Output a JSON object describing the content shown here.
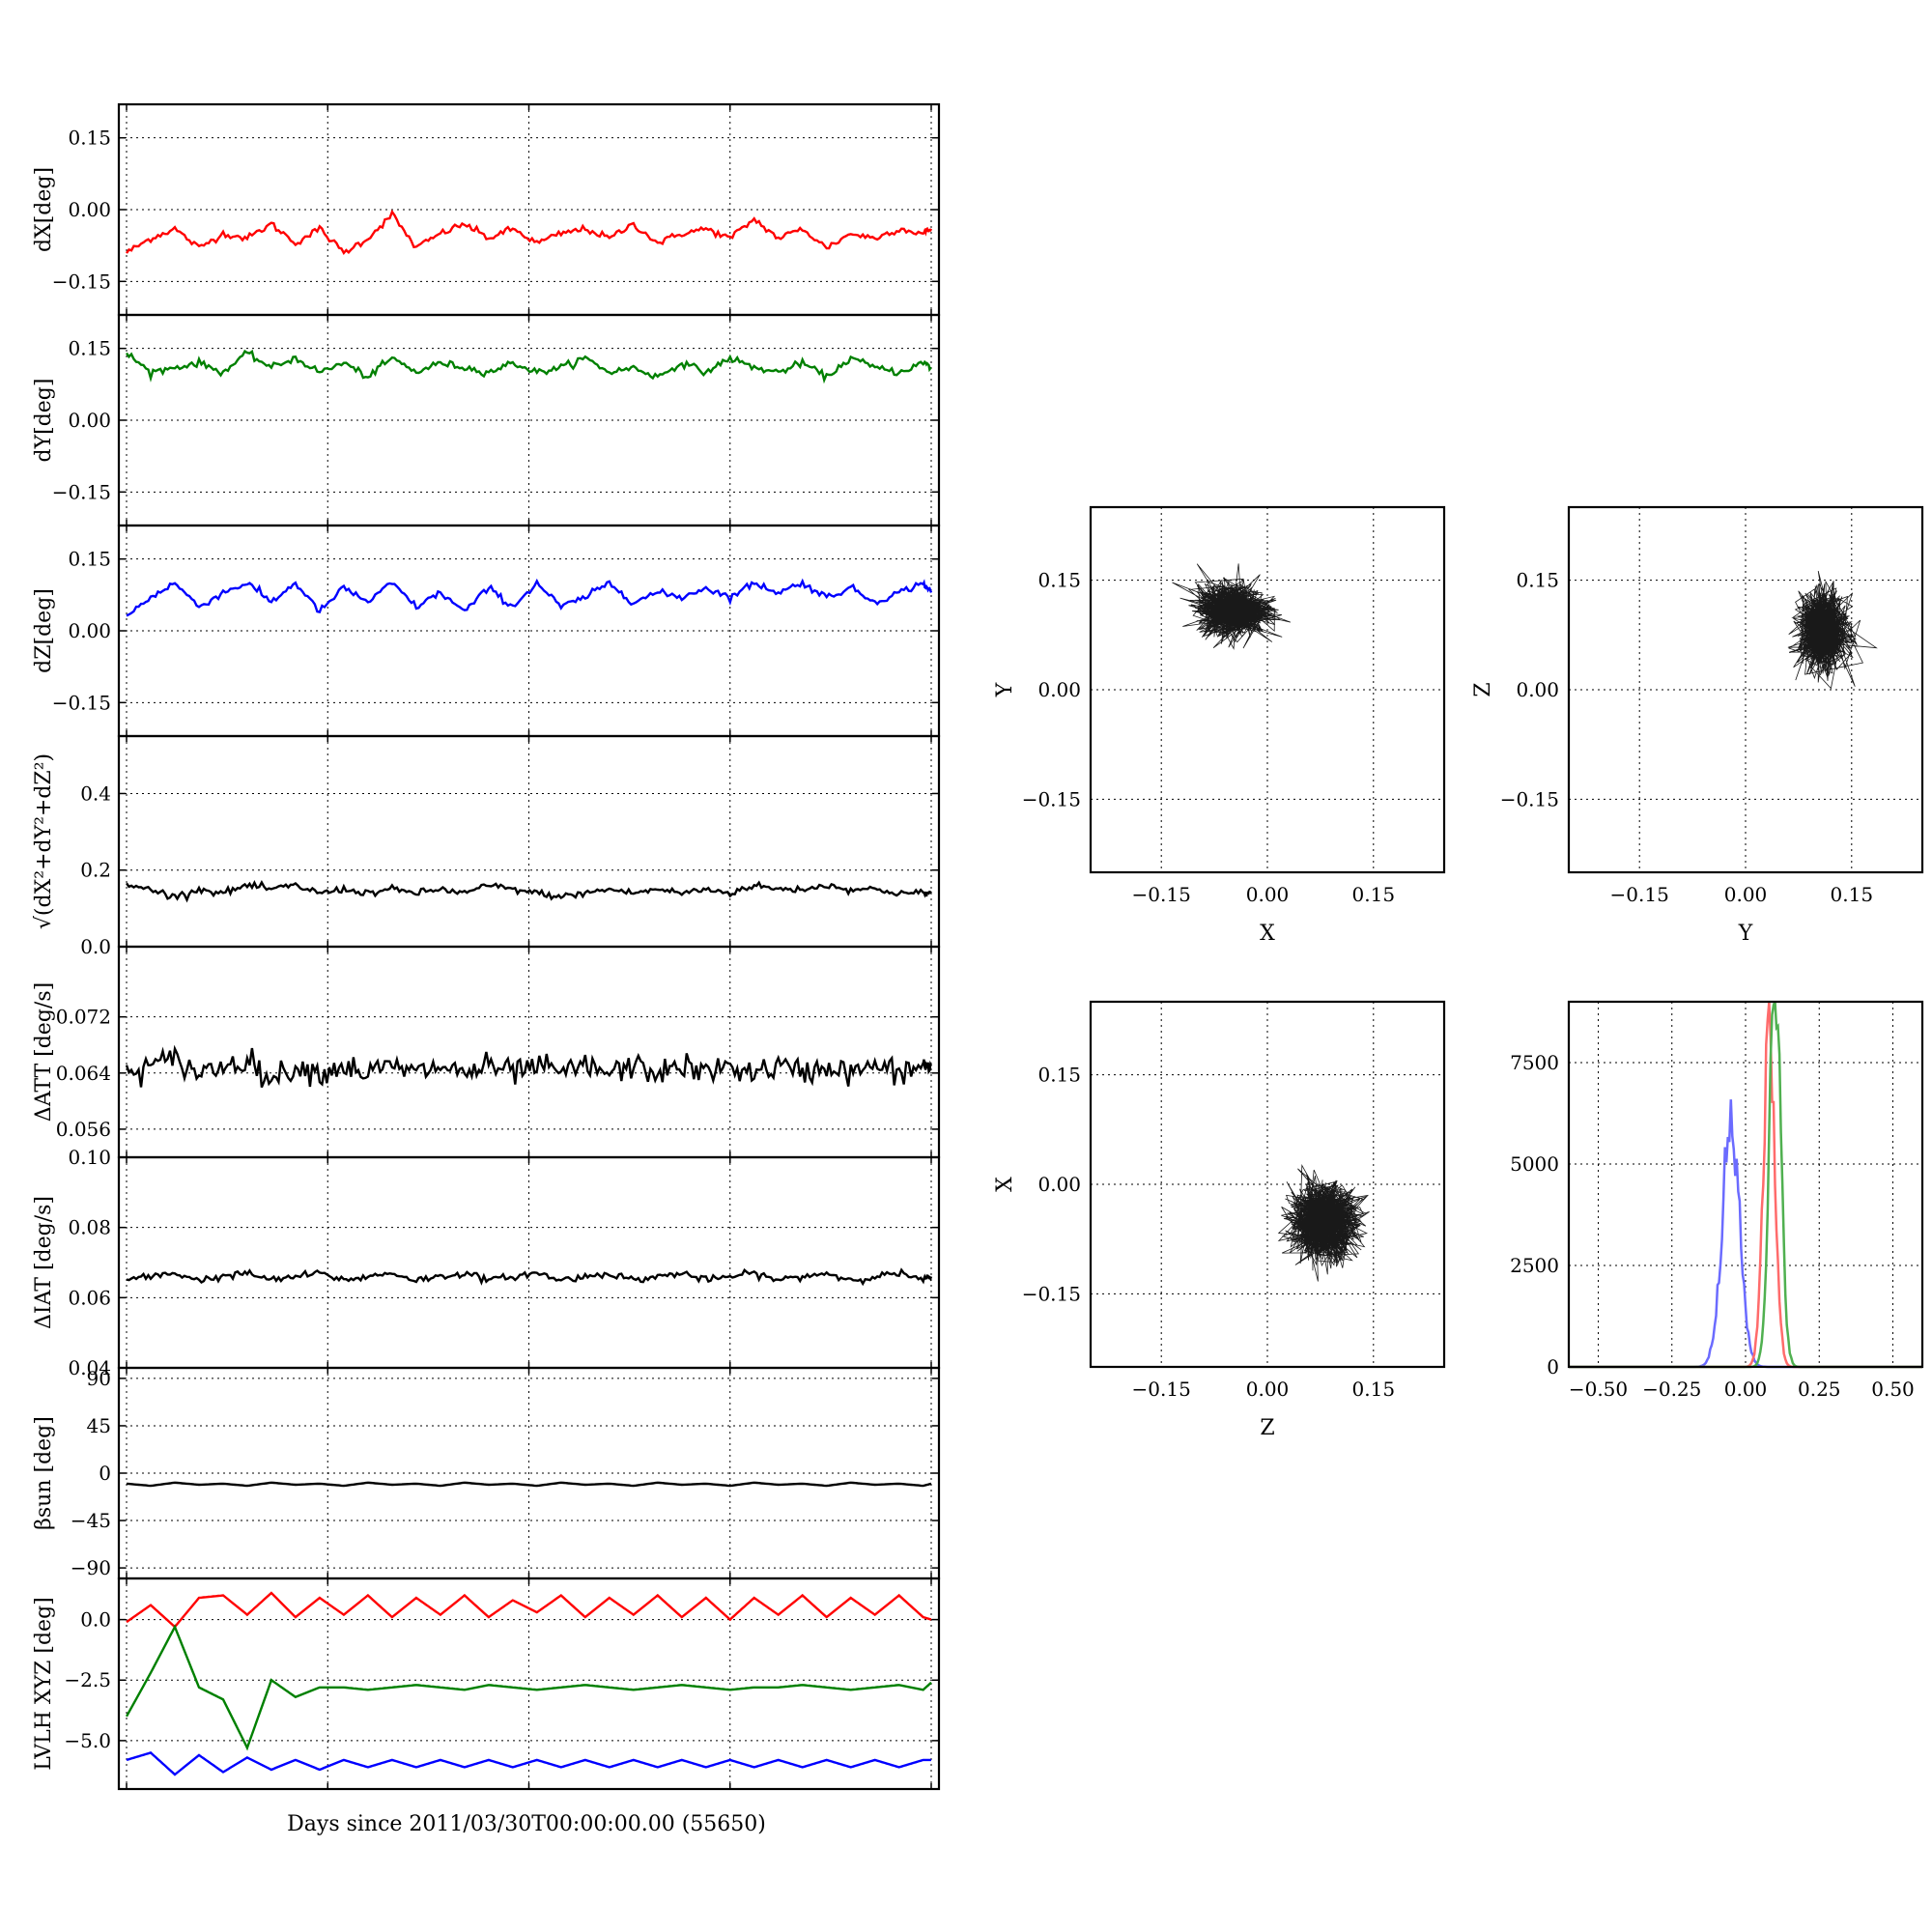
{
  "figure": {
    "xlabel": "Days since 2011/03/30T00:00:00.00 (55650)"
  },
  "timeseries": {
    "colors": {
      "red": "#ff0000",
      "green": "#008000",
      "blue": "#0000ff",
      "black": "#000000"
    }
  },
  "chart_data": [
    {
      "type": "line",
      "ylabel": "dX[deg]",
      "ylim": [
        -0.22,
        0.22
      ],
      "yticks": [
        "0.15",
        "0.00",
        "−0.15"
      ],
      "ytick_values": [
        0.15,
        0.0,
        -0.15
      ],
      "grid": true,
      "series": [
        {
          "color": "#ff0000",
          "x": [
            0,
            3,
            6,
            9,
            12,
            15,
            18,
            21,
            24,
            27,
            30,
            33,
            36,
            39,
            42,
            45,
            48,
            51,
            54,
            57,
            60,
            63,
            66,
            69,
            72,
            75,
            78,
            81,
            84,
            87,
            90,
            93,
            96,
            99,
            100
          ],
          "y": [
            -0.09,
            -0.06,
            -0.04,
            -0.08,
            -0.05,
            -0.06,
            -0.03,
            -0.07,
            -0.04,
            -0.09,
            -0.06,
            -0.01,
            -0.08,
            -0.05,
            -0.03,
            -0.06,
            -0.04,
            -0.07,
            -0.05,
            -0.04,
            -0.06,
            -0.03,
            -0.07,
            -0.05,
            -0.04,
            -0.06,
            -0.02,
            -0.06,
            -0.04,
            -0.08,
            -0.05,
            -0.06,
            -0.04,
            -0.05,
            -0.04
          ]
        }
      ]
    },
    {
      "type": "line",
      "ylabel": "dY[deg]",
      "ylim": [
        -0.22,
        0.22
      ],
      "yticks": [
        "0.15",
        "0.00",
        "−0.15"
      ],
      "ytick_values": [
        0.15,
        0.0,
        -0.15
      ],
      "grid": true,
      "series": [
        {
          "color": "#008000",
          "x": [
            0,
            3,
            6,
            9,
            12,
            15,
            18,
            21,
            24,
            27,
            30,
            33,
            36,
            39,
            42,
            45,
            48,
            51,
            54,
            57,
            60,
            63,
            66,
            69,
            72,
            75,
            78,
            81,
            84,
            87,
            90,
            93,
            96,
            99,
            100
          ],
          "y": [
            0.14,
            0.1,
            0.11,
            0.12,
            0.1,
            0.14,
            0.11,
            0.13,
            0.1,
            0.12,
            0.09,
            0.13,
            0.1,
            0.12,
            0.11,
            0.1,
            0.12,
            0.1,
            0.11,
            0.13,
            0.1,
            0.11,
            0.09,
            0.12,
            0.1,
            0.13,
            0.11,
            0.1,
            0.12,
            0.09,
            0.13,
            0.11,
            0.1,
            0.12,
            0.11
          ]
        }
      ]
    },
    {
      "type": "line",
      "ylabel": "dZ[deg]",
      "ylim": [
        -0.22,
        0.22
      ],
      "yticks": [
        "0.15",
        "0.00",
        "−0.15"
      ],
      "ytick_values": [
        0.15,
        0.0,
        -0.15
      ],
      "grid": true,
      "series": [
        {
          "color": "#0000ff",
          "x": [
            0,
            3,
            6,
            9,
            12,
            15,
            18,
            21,
            24,
            27,
            30,
            33,
            36,
            39,
            42,
            45,
            48,
            51,
            54,
            57,
            60,
            63,
            66,
            69,
            72,
            75,
            78,
            81,
            84,
            87,
            90,
            93,
            96,
            99,
            100
          ],
          "y": [
            0.03,
            0.07,
            0.1,
            0.05,
            0.08,
            0.1,
            0.06,
            0.1,
            0.04,
            0.09,
            0.06,
            0.1,
            0.05,
            0.08,
            0.04,
            0.09,
            0.05,
            0.1,
            0.05,
            0.07,
            0.1,
            0.06,
            0.08,
            0.07,
            0.09,
            0.07,
            0.1,
            0.08,
            0.1,
            0.07,
            0.09,
            0.06,
            0.08,
            0.1,
            0.08
          ]
        }
      ]
    },
    {
      "type": "line",
      "ylabel": "√(dX²+dY²+dZ²)",
      "ylim": [
        0.0,
        0.55
      ],
      "yticks": [
        "0.0",
        "0.2",
        "0.4"
      ],
      "ytick_values": [
        0.0,
        0.2,
        0.4
      ],
      "grid": true,
      "series": [
        {
          "color": "#000000",
          "x": [
            0,
            3,
            6,
            9,
            12,
            15,
            18,
            21,
            24,
            27,
            30,
            33,
            36,
            39,
            42,
            45,
            48,
            51,
            54,
            57,
            60,
            63,
            66,
            69,
            72,
            75,
            78,
            81,
            84,
            87,
            90,
            93,
            96,
            99,
            100
          ],
          "y": [
            0.16,
            0.15,
            0.13,
            0.15,
            0.14,
            0.16,
            0.15,
            0.16,
            0.14,
            0.15,
            0.14,
            0.15,
            0.14,
            0.15,
            0.14,
            0.16,
            0.15,
            0.14,
            0.13,
            0.14,
            0.15,
            0.14,
            0.15,
            0.14,
            0.15,
            0.14,
            0.16,
            0.15,
            0.15,
            0.16,
            0.15,
            0.15,
            0.14,
            0.14,
            0.14
          ]
        }
      ]
    },
    {
      "type": "line",
      "ylabel": "ΔATT [deg/s]",
      "ylim": [
        0.052,
        0.082
      ],
      "yticks": [
        "0.056",
        "0.064",
        "0.072"
      ],
      "ytick_values": [
        0.056,
        0.064,
        0.072
      ],
      "grid": true,
      "series": [
        {
          "color": "#000000",
          "x": [
            0,
            3,
            6,
            9,
            12,
            15,
            18,
            21,
            24,
            27,
            30,
            33,
            36,
            39,
            42,
            45,
            48,
            51,
            54,
            57,
            60,
            63,
            66,
            69,
            72,
            75,
            78,
            81,
            84,
            87,
            90,
            93,
            96,
            99,
            100
          ],
          "y": [
            0.064,
            0.065,
            0.066,
            0.064,
            0.065,
            0.066,
            0.063,
            0.065,
            0.064,
            0.065,
            0.064,
            0.065,
            0.064,
            0.065,
            0.064,
            0.065,
            0.064,
            0.065,
            0.064,
            0.065,
            0.064,
            0.065,
            0.064,
            0.065,
            0.064,
            0.065,
            0.064,
            0.065,
            0.064,
            0.065,
            0.064,
            0.065,
            0.064,
            0.065,
            0.065
          ]
        }
      ]
    },
    {
      "type": "line",
      "ylabel": "ΔIAT [deg/s]",
      "ylim": [
        0.04,
        0.1
      ],
      "yticks": [
        "0.04",
        "0.06",
        "0.08",
        "0.10"
      ],
      "ytick_values": [
        0.04,
        0.06,
        0.08,
        0.1
      ],
      "grid": true,
      "series": [
        {
          "color": "#000000",
          "x": [
            0,
            3,
            6,
            9,
            12,
            15,
            18,
            21,
            24,
            27,
            30,
            33,
            36,
            39,
            42,
            45,
            48,
            51,
            54,
            57,
            60,
            63,
            66,
            69,
            72,
            75,
            78,
            81,
            84,
            87,
            90,
            93,
            96,
            99,
            100
          ],
          "y": [
            0.065,
            0.066,
            0.067,
            0.065,
            0.066,
            0.067,
            0.065,
            0.066,
            0.067,
            0.065,
            0.066,
            0.067,
            0.065,
            0.066,
            0.067,
            0.065,
            0.066,
            0.067,
            0.065,
            0.066,
            0.067,
            0.065,
            0.066,
            0.067,
            0.065,
            0.066,
            0.067,
            0.065,
            0.066,
            0.067,
            0.065,
            0.066,
            0.067,
            0.065,
            0.066
          ]
        }
      ]
    },
    {
      "type": "line",
      "ylabel": "βsun [deg]",
      "ylim": [
        -100,
        100
      ],
      "yticks": [
        "90",
        "45",
        "0",
        "−45",
        "−90"
      ],
      "ytick_values": [
        90,
        45,
        0,
        -45,
        -90
      ],
      "grid": true,
      "series": [
        {
          "color": "#000000",
          "x": [
            0,
            3,
            6,
            9,
            12,
            15,
            18,
            21,
            24,
            27,
            30,
            33,
            36,
            39,
            42,
            45,
            48,
            51,
            54,
            57,
            60,
            63,
            66,
            69,
            72,
            75,
            78,
            81,
            84,
            87,
            90,
            93,
            96,
            99,
            100
          ],
          "y": [
            -10,
            -12,
            -9,
            -11,
            -10,
            -12,
            -9,
            -11,
            -10,
            -12,
            -9,
            -11,
            -10,
            -12,
            -9,
            -11,
            -10,
            -12,
            -9,
            -11,
            -10,
            -12,
            -9,
            -11,
            -10,
            -12,
            -9,
            -11,
            -10,
            -12,
            -9,
            -11,
            -10,
            -12,
            -10
          ]
        }
      ]
    },
    {
      "type": "line",
      "ylabel": "LVLH XYZ [deg]",
      "ylim": [
        -7.0,
        1.7
      ],
      "yticks": [
        "0.0",
        "−2.5",
        "−5.0"
      ],
      "ytick_values": [
        0.0,
        -2.5,
        -5.0
      ],
      "grid": true,
      "series": [
        {
          "color": "#ff0000",
          "x": [
            0,
            3,
            6,
            9,
            12,
            15,
            18,
            21,
            24,
            27,
            30,
            33,
            36,
            39,
            42,
            45,
            48,
            51,
            54,
            57,
            60,
            63,
            66,
            69,
            72,
            75,
            78,
            81,
            84,
            87,
            90,
            93,
            96,
            99,
            100
          ],
          "y": [
            -0.1,
            0.6,
            -0.3,
            0.9,
            1.0,
            0.2,
            1.1,
            0.1,
            0.9,
            0.2,
            1.0,
            0.1,
            0.9,
            0.2,
            1.0,
            0.1,
            0.8,
            0.3,
            1.0,
            0.1,
            0.9,
            0.2,
            1.0,
            0.1,
            0.9,
            0.0,
            0.9,
            0.2,
            1.0,
            0.1,
            0.9,
            0.2,
            1.0,
            0.1,
            0.0
          ]
        },
        {
          "color": "#008000",
          "x": [
            0,
            3,
            6,
            9,
            12,
            15,
            18,
            21,
            24,
            27,
            30,
            33,
            36,
            39,
            42,
            45,
            48,
            51,
            54,
            57,
            60,
            63,
            66,
            69,
            72,
            75,
            78,
            81,
            84,
            87,
            90,
            93,
            96,
            99,
            100
          ],
          "y": [
            -4.0,
            -2.2,
            -0.3,
            -2.8,
            -3.3,
            -5.3,
            -2.5,
            -3.2,
            -2.8,
            -2.8,
            -2.9,
            -2.8,
            -2.7,
            -2.8,
            -2.9,
            -2.7,
            -2.8,
            -2.9,
            -2.8,
            -2.7,
            -2.8,
            -2.9,
            -2.8,
            -2.7,
            -2.8,
            -2.9,
            -2.8,
            -2.8,
            -2.7,
            -2.8,
            -2.9,
            -2.8,
            -2.7,
            -2.9,
            -2.6
          ]
        },
        {
          "color": "#0000ff",
          "x": [
            0,
            3,
            6,
            9,
            12,
            15,
            18,
            21,
            24,
            27,
            30,
            33,
            36,
            39,
            42,
            45,
            48,
            51,
            54,
            57,
            60,
            63,
            66,
            69,
            72,
            75,
            78,
            81,
            84,
            87,
            90,
            93,
            96,
            99,
            100
          ],
          "y": [
            -5.8,
            -5.5,
            -6.4,
            -5.6,
            -6.3,
            -5.7,
            -6.2,
            -5.8,
            -6.2,
            -5.8,
            -6.1,
            -5.8,
            -6.1,
            -5.8,
            -6.1,
            -5.8,
            -6.1,
            -5.8,
            -6.1,
            -5.8,
            -6.1,
            -5.8,
            -6.1,
            -5.8,
            -6.1,
            -5.8,
            -6.1,
            -5.8,
            -6.1,
            -5.8,
            -6.1,
            -5.8,
            -6.1,
            -5.8,
            -5.8
          ]
        }
      ]
    },
    {
      "type": "scatter",
      "xlabel": "X",
      "ylabel": "Y",
      "xlim": [
        -0.25,
        0.25
      ],
      "ylim": [
        -0.25,
        0.25
      ],
      "xticks": [
        "−0.15",
        "0.00",
        "0.15"
      ],
      "yticks": [
        "0.15",
        "0.00",
        "−0.15"
      ],
      "tick_values": [
        -0.15,
        0.0,
        0.15
      ],
      "grid": true,
      "cluster_center": [
        -0.05,
        0.11
      ],
      "cluster_spread": [
        0.05,
        0.035
      ]
    },
    {
      "type": "scatter",
      "xlabel": "Y",
      "ylabel": "Z",
      "xlim": [
        -0.25,
        0.25
      ],
      "ylim": [
        -0.25,
        0.25
      ],
      "xticks": [
        "−0.15",
        "0.00",
        "0.15"
      ],
      "yticks": [
        "0.15",
        "0.00",
        "−0.15"
      ],
      "tick_values": [
        -0.15,
        0.0,
        0.15
      ],
      "grid": true,
      "cluster_center": [
        0.11,
        0.08
      ],
      "cluster_spread": [
        0.035,
        0.05
      ]
    },
    {
      "type": "scatter",
      "xlabel": "Z",
      "ylabel": "X",
      "xlim": [
        -0.25,
        0.25
      ],
      "ylim": [
        -0.25,
        0.25
      ],
      "xticks": [
        "−0.15",
        "0.00",
        "0.15"
      ],
      "yticks": [
        "0.15",
        "0.00",
        "−0.15"
      ],
      "tick_values": [
        -0.15,
        0.0,
        0.15
      ],
      "grid": true,
      "cluster_center": [
        0.08,
        -0.05
      ],
      "cluster_spread": [
        0.05,
        0.05
      ]
    },
    {
      "type": "histogram",
      "xlim": [
        -0.6,
        0.6
      ],
      "ylim": [
        0,
        9000
      ],
      "xticks": [
        "−0.50",
        "−0.25",
        "0.00",
        "0.25",
        "0.50"
      ],
      "xtick_values": [
        -0.5,
        -0.25,
        0.0,
        0.25,
        0.5
      ],
      "yticks": [
        "0",
        "2500",
        "5000",
        "7500"
      ],
      "ytick_values": [
        0,
        2500,
        5000,
        7500
      ],
      "grid": true,
      "series": [
        {
          "color": "#6b6bff",
          "mean": -0.05,
          "sd": 0.03,
          "peak": 5900
        },
        {
          "color": "#ff6b6b",
          "mean": 0.08,
          "sd": 0.02,
          "peak": 8200
        },
        {
          "color": "#50b050",
          "mean": 0.1,
          "sd": 0.02,
          "peak": 9000
        }
      ]
    }
  ]
}
